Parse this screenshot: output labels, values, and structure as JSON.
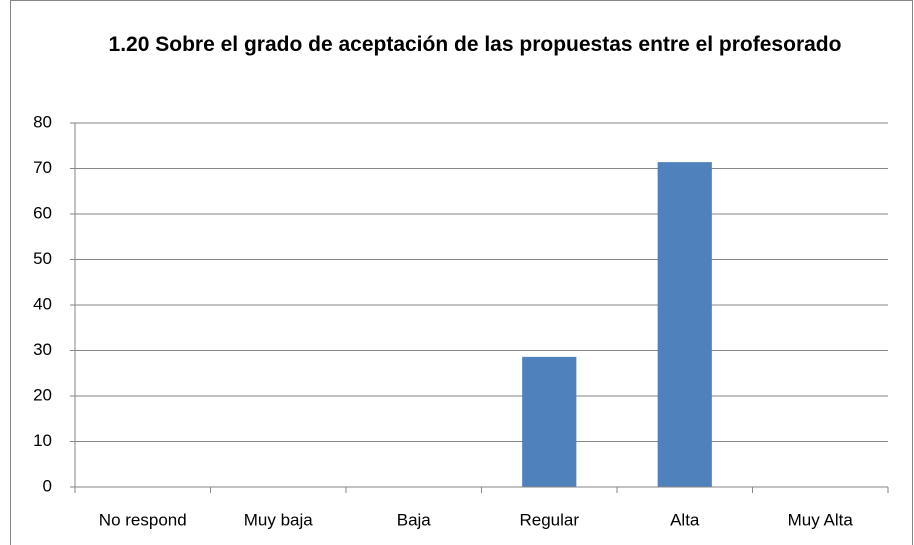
{
  "chart_data": {
    "type": "bar",
    "title": "1.20 Sobre el grado de aceptación de las propuestas entre el profesorado",
    "categories": [
      "No respond",
      "Muy baja",
      "Baja",
      "Regular",
      "Alta",
      "Muy Alta"
    ],
    "values": [
      0,
      0,
      0,
      28.6,
      71.4,
      0
    ],
    "color": "#4f81bd",
    "ylim": [
      0,
      80
    ],
    "yticks": [
      0,
      10,
      20,
      30,
      40,
      50,
      60,
      70,
      80
    ],
    "grid": true
  }
}
